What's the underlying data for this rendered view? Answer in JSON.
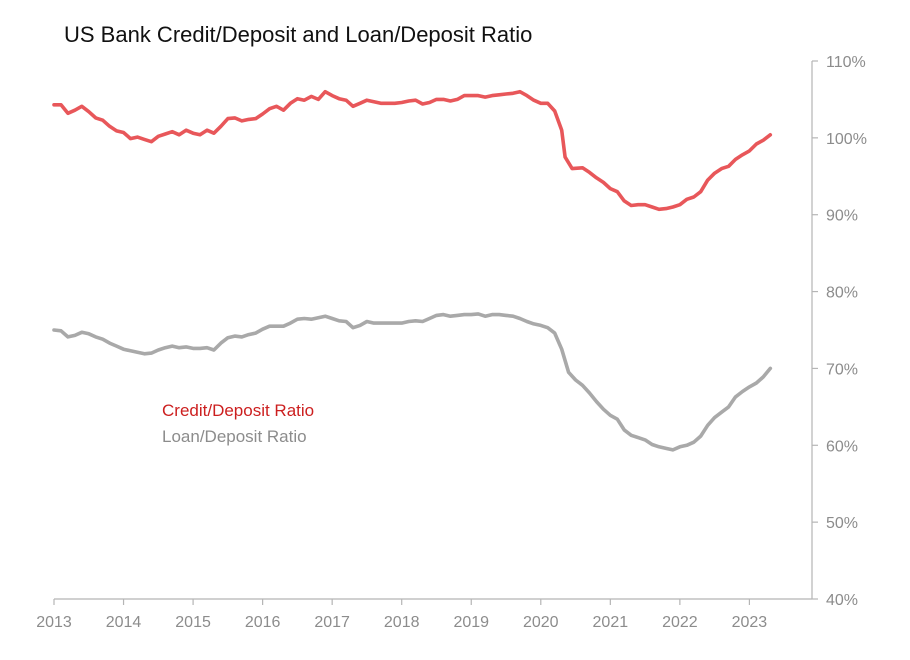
{
  "chart_data": {
    "type": "line",
    "title": "US Bank Credit/Deposit and Loan/Deposit Ratio",
    "xlabel": "",
    "ylabel": "",
    "x_ticks": [
      "2013",
      "2014",
      "2015",
      "2016",
      "2017",
      "2018",
      "2019",
      "2020",
      "2021",
      "2022",
      "2023"
    ],
    "x_range": [
      2013,
      2023.9
    ],
    "y_axis_side": "right",
    "y_ticks": [
      "40%",
      "50%",
      "60%",
      "70%",
      "80%",
      "90%",
      "100%",
      "110%"
    ],
    "ylim": [
      40,
      110
    ],
    "grid": false,
    "legend_position": "left-center",
    "series": [
      {
        "name": "Credit/Deposit Ratio",
        "color": "#e8575a",
        "label_color": "#cc1f1f",
        "points": [
          [
            2013.0,
            104.3
          ],
          [
            2013.1,
            104.3
          ],
          [
            2013.2,
            103.2
          ],
          [
            2013.3,
            103.6
          ],
          [
            2013.4,
            104.1
          ],
          [
            2013.5,
            103.4
          ],
          [
            2013.6,
            102.6
          ],
          [
            2013.7,
            102.3
          ],
          [
            2013.8,
            101.5
          ],
          [
            2013.9,
            100.9
          ],
          [
            2014.0,
            100.7
          ],
          [
            2014.1,
            99.9
          ],
          [
            2014.2,
            100.1
          ],
          [
            2014.3,
            99.8
          ],
          [
            2014.4,
            99.5
          ],
          [
            2014.5,
            100.2
          ],
          [
            2014.6,
            100.5
          ],
          [
            2014.7,
            100.8
          ],
          [
            2014.8,
            100.4
          ],
          [
            2014.9,
            101.0
          ],
          [
            2015.0,
            100.6
          ],
          [
            2015.1,
            100.4
          ],
          [
            2015.2,
            101.0
          ],
          [
            2015.3,
            100.6
          ],
          [
            2015.4,
            101.5
          ],
          [
            2015.5,
            102.5
          ],
          [
            2015.6,
            102.6
          ],
          [
            2015.7,
            102.2
          ],
          [
            2015.8,
            102.4
          ],
          [
            2015.9,
            102.5
          ],
          [
            2016.0,
            103.1
          ],
          [
            2016.1,
            103.8
          ],
          [
            2016.2,
            104.1
          ],
          [
            2016.3,
            103.6
          ],
          [
            2016.4,
            104.5
          ],
          [
            2016.5,
            105.1
          ],
          [
            2016.6,
            104.9
          ],
          [
            2016.7,
            105.4
          ],
          [
            2016.8,
            105.0
          ],
          [
            2016.9,
            106.0
          ],
          [
            2017.0,
            105.5
          ],
          [
            2017.1,
            105.1
          ],
          [
            2017.2,
            104.9
          ],
          [
            2017.3,
            104.1
          ],
          [
            2017.4,
            104.5
          ],
          [
            2017.5,
            104.9
          ],
          [
            2017.6,
            104.7
          ],
          [
            2017.7,
            104.5
          ],
          [
            2017.8,
            104.5
          ],
          [
            2017.9,
            104.5
          ],
          [
            2018.0,
            104.6
          ],
          [
            2018.1,
            104.8
          ],
          [
            2018.2,
            104.9
          ],
          [
            2018.3,
            104.4
          ],
          [
            2018.4,
            104.6
          ],
          [
            2018.5,
            105.0
          ],
          [
            2018.6,
            105.0
          ],
          [
            2018.7,
            104.8
          ],
          [
            2018.8,
            105.0
          ],
          [
            2018.9,
            105.5
          ],
          [
            2019.0,
            105.5
          ],
          [
            2019.1,
            105.5
          ],
          [
            2019.2,
            105.3
          ],
          [
            2019.3,
            105.5
          ],
          [
            2019.4,
            105.6
          ],
          [
            2019.5,
            105.7
          ],
          [
            2019.6,
            105.8
          ],
          [
            2019.7,
            106.0
          ],
          [
            2019.8,
            105.5
          ],
          [
            2019.9,
            104.9
          ],
          [
            2020.0,
            104.5
          ],
          [
            2020.1,
            104.5
          ],
          [
            2020.2,
            103.5
          ],
          [
            2020.3,
            101.0
          ],
          [
            2020.35,
            97.5
          ],
          [
            2020.45,
            96.0
          ],
          [
            2020.6,
            96.1
          ],
          [
            2020.7,
            95.5
          ],
          [
            2020.8,
            94.8
          ],
          [
            2020.9,
            94.2
          ],
          [
            2021.0,
            93.4
          ],
          [
            2021.1,
            93.0
          ],
          [
            2021.2,
            91.8
          ],
          [
            2021.3,
            91.2
          ],
          [
            2021.4,
            91.3
          ],
          [
            2021.5,
            91.3
          ],
          [
            2021.6,
            91.0
          ],
          [
            2021.7,
            90.7
          ],
          [
            2021.8,
            90.8
          ],
          [
            2021.9,
            91.0
          ],
          [
            2022.0,
            91.3
          ],
          [
            2022.1,
            92.0
          ],
          [
            2022.2,
            92.3
          ],
          [
            2022.3,
            93.0
          ],
          [
            2022.4,
            94.5
          ],
          [
            2022.5,
            95.4
          ],
          [
            2022.6,
            96.0
          ],
          [
            2022.7,
            96.3
          ],
          [
            2022.8,
            97.2
          ],
          [
            2022.9,
            97.8
          ],
          [
            2023.0,
            98.3
          ],
          [
            2023.1,
            99.2
          ],
          [
            2023.2,
            99.7
          ],
          [
            2023.3,
            100.4
          ]
        ]
      },
      {
        "name": "Loan/Deposit Ratio",
        "color": "#a9a9a9",
        "label_color": "#8c8c8c",
        "points": [
          [
            2013.0,
            75.0
          ],
          [
            2013.1,
            74.9
          ],
          [
            2013.2,
            74.1
          ],
          [
            2013.3,
            74.3
          ],
          [
            2013.4,
            74.7
          ],
          [
            2013.5,
            74.5
          ],
          [
            2013.6,
            74.1
          ],
          [
            2013.7,
            73.8
          ],
          [
            2013.8,
            73.3
          ],
          [
            2013.9,
            72.9
          ],
          [
            2014.0,
            72.5
          ],
          [
            2014.1,
            72.3
          ],
          [
            2014.2,
            72.1
          ],
          [
            2014.3,
            71.9
          ],
          [
            2014.4,
            72.0
          ],
          [
            2014.5,
            72.4
          ],
          [
            2014.6,
            72.7
          ],
          [
            2014.7,
            72.9
          ],
          [
            2014.8,
            72.7
          ],
          [
            2014.9,
            72.8
          ],
          [
            2015.0,
            72.6
          ],
          [
            2015.1,
            72.6
          ],
          [
            2015.2,
            72.7
          ],
          [
            2015.3,
            72.4
          ],
          [
            2015.4,
            73.3
          ],
          [
            2015.5,
            74.0
          ],
          [
            2015.6,
            74.2
          ],
          [
            2015.7,
            74.1
          ],
          [
            2015.8,
            74.4
          ],
          [
            2015.9,
            74.6
          ],
          [
            2016.0,
            75.1
          ],
          [
            2016.1,
            75.5
          ],
          [
            2016.2,
            75.5
          ],
          [
            2016.3,
            75.5
          ],
          [
            2016.4,
            75.9
          ],
          [
            2016.5,
            76.4
          ],
          [
            2016.6,
            76.5
          ],
          [
            2016.7,
            76.4
          ],
          [
            2016.8,
            76.6
          ],
          [
            2016.9,
            76.8
          ],
          [
            2017.0,
            76.5
          ],
          [
            2017.1,
            76.2
          ],
          [
            2017.2,
            76.1
          ],
          [
            2017.3,
            75.3
          ],
          [
            2017.4,
            75.6
          ],
          [
            2017.5,
            76.1
          ],
          [
            2017.6,
            75.9
          ],
          [
            2017.7,
            75.9
          ],
          [
            2017.8,
            75.9
          ],
          [
            2017.9,
            75.9
          ],
          [
            2018.0,
            75.9
          ],
          [
            2018.1,
            76.1
          ],
          [
            2018.2,
            76.2
          ],
          [
            2018.3,
            76.1
          ],
          [
            2018.4,
            76.5
          ],
          [
            2018.5,
            76.9
          ],
          [
            2018.6,
            77.0
          ],
          [
            2018.7,
            76.8
          ],
          [
            2018.8,
            76.9
          ],
          [
            2018.9,
            77.0
          ],
          [
            2019.0,
            77.0
          ],
          [
            2019.1,
            77.1
          ],
          [
            2019.2,
            76.8
          ],
          [
            2019.3,
            77.0
          ],
          [
            2019.4,
            77.0
          ],
          [
            2019.5,
            76.9
          ],
          [
            2019.6,
            76.8
          ],
          [
            2019.7,
            76.5
          ],
          [
            2019.8,
            76.1
          ],
          [
            2019.9,
            75.8
          ],
          [
            2020.0,
            75.6
          ],
          [
            2020.1,
            75.3
          ],
          [
            2020.2,
            74.6
          ],
          [
            2020.3,
            72.5
          ],
          [
            2020.4,
            69.5
          ],
          [
            2020.5,
            68.5
          ],
          [
            2020.6,
            67.8
          ],
          [
            2020.7,
            66.8
          ],
          [
            2020.8,
            65.7
          ],
          [
            2020.9,
            64.7
          ],
          [
            2021.0,
            63.9
          ],
          [
            2021.1,
            63.4
          ],
          [
            2021.2,
            62.0
          ],
          [
            2021.3,
            61.3
          ],
          [
            2021.4,
            61.0
          ],
          [
            2021.5,
            60.7
          ],
          [
            2021.6,
            60.1
          ],
          [
            2021.7,
            59.8
          ],
          [
            2021.8,
            59.6
          ],
          [
            2021.9,
            59.4
          ],
          [
            2022.0,
            59.8
          ],
          [
            2022.1,
            60.0
          ],
          [
            2022.2,
            60.4
          ],
          [
            2022.3,
            61.2
          ],
          [
            2022.4,
            62.6
          ],
          [
            2022.5,
            63.6
          ],
          [
            2022.6,
            64.3
          ],
          [
            2022.7,
            65.0
          ],
          [
            2022.8,
            66.3
          ],
          [
            2022.9,
            67.0
          ],
          [
            2023.0,
            67.6
          ],
          [
            2023.1,
            68.1
          ],
          [
            2023.2,
            68.9
          ],
          [
            2023.3,
            70.0
          ]
        ]
      }
    ]
  }
}
